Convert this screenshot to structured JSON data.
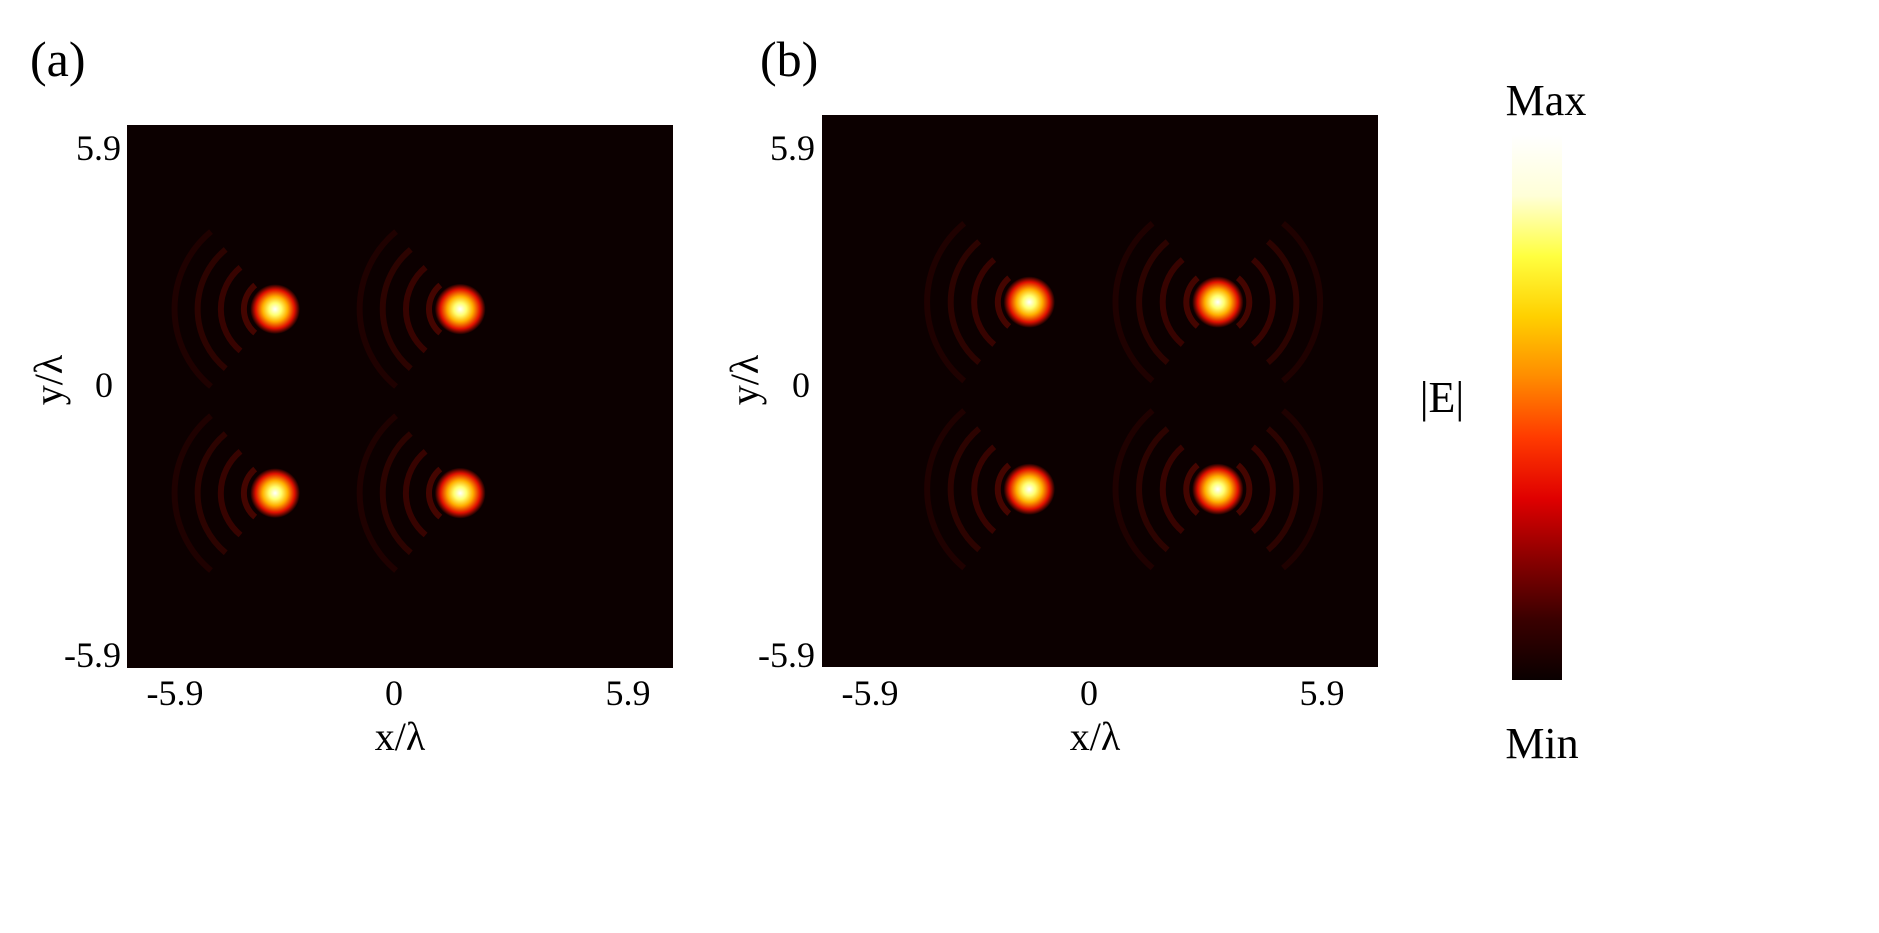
{
  "colors": {
    "colormap_stops": [
      "#0a0000",
      "#3a0000",
      "#8a0000",
      "#e00000",
      "#ff3a00",
      "#ff8c00",
      "#ffd000",
      "#ffff40",
      "#ffffd8",
      "#ffffff"
    ],
    "background": "#ffffff"
  },
  "colorbar": {
    "label": "|E|",
    "max_label": "Max",
    "min_label": "Min"
  },
  "chart_data": [
    {
      "type": "heatmap",
      "panel_label": "(a)",
      "xlabel": "x/λ",
      "ylabel": "y/λ",
      "xlim": [
        -5.9,
        5.9
      ],
      "ylim": [
        -5.9,
        5.9
      ],
      "x_ticks": [
        "-5.9",
        "0",
        "5.9"
      ],
      "y_ticks": [
        "5.9",
        "0",
        "-5.9"
      ],
      "foci": [
        {
          "x": -2.7,
          "y": 1.9,
          "intensity": 0.9
        },
        {
          "x": 1.3,
          "y": 1.9,
          "intensity": 1.0
        },
        {
          "x": -2.7,
          "y": -2.1,
          "intensity": 0.9
        },
        {
          "x": 1.3,
          "y": -2.1,
          "intensity": 1.0
        }
      ],
      "ring_arcs": [
        {
          "x": -2.7,
          "y": 1.9,
          "side": "left"
        },
        {
          "x": 1.3,
          "y": 1.9,
          "side": "left"
        },
        {
          "x": -2.7,
          "y": -2.1,
          "side": "left"
        },
        {
          "x": 1.3,
          "y": -2.1,
          "side": "left"
        }
      ]
    },
    {
      "type": "heatmap",
      "panel_label": "(b)",
      "xlabel": "x/λ",
      "ylabel": "y/λ",
      "xlim": [
        -5.9,
        5.9
      ],
      "ylim": [
        -5.9,
        5.9
      ],
      "x_ticks": [
        "-5.9",
        "0",
        "5.9"
      ],
      "y_ticks": [
        "5.9",
        "0",
        "-5.9"
      ],
      "foci": [
        {
          "x": -1.5,
          "y": 1.9,
          "intensity": 0.95
        },
        {
          "x": 2.5,
          "y": 1.9,
          "intensity": 0.95
        },
        {
          "x": -1.5,
          "y": -2.1,
          "intensity": 0.95
        },
        {
          "x": 2.5,
          "y": -2.1,
          "intensity": 0.95
        }
      ],
      "ring_arcs": [
        {
          "x": -1.5,
          "y": 1.9,
          "side": "left"
        },
        {
          "x": 2.5,
          "y": 1.9,
          "side": "both"
        },
        {
          "x": -1.5,
          "y": -2.1,
          "side": "left"
        },
        {
          "x": 2.5,
          "y": -2.1,
          "side": "both"
        }
      ]
    }
  ]
}
